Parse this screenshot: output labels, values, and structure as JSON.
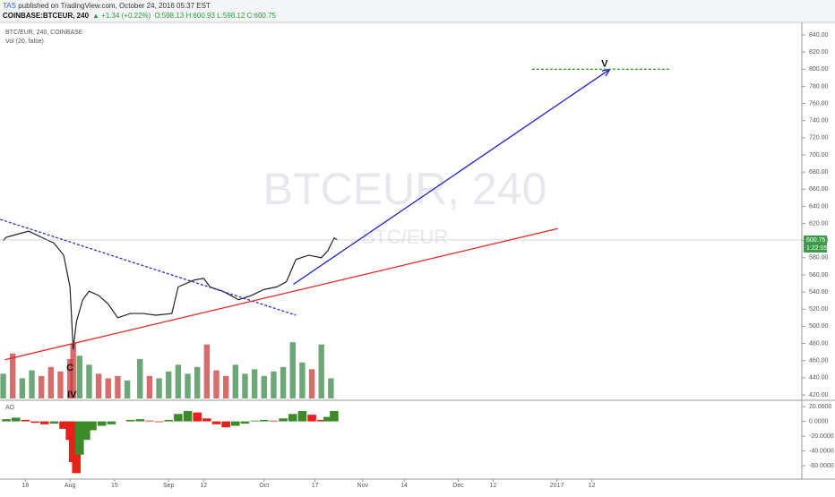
{
  "chart_data": {
    "type": "line",
    "header": {
      "author": "TAS",
      "published": " published on TradingView.com, October 24, 2016 05:37 EST",
      "symbol": "COINBASE:BTCEUR, 240",
      "change": "▲ +1.34 (+0.22%)",
      "ohlc": "O:598.13 H:600.93 L:598.12 C:600.75"
    },
    "legend": {
      "main": "BTC/EUR, 240, COINBASE",
      "volume": "Vol (20, false)",
      "oscillator": "AO"
    },
    "watermark": {
      "title": "BTCEUR, 240",
      "subtitle": "BTC/EUR"
    },
    "xlim": [
      -8,
      244
    ],
    "xticks": [
      {
        "value": 0,
        "label": "18"
      },
      {
        "value": 14,
        "label": "Aug"
      },
      {
        "value": 28,
        "label": "15"
      },
      {
        "value": 45,
        "label": "Sep"
      },
      {
        "value": 56,
        "label": "12"
      },
      {
        "value": 75,
        "label": "Oct"
      },
      {
        "value": 91,
        "label": "17"
      },
      {
        "value": 106,
        "label": "Nov"
      },
      {
        "value": 119,
        "label": "14"
      },
      {
        "value": 136,
        "label": "Dec"
      },
      {
        "value": 147,
        "label": "12"
      },
      {
        "value": 167,
        "label": "2017"
      },
      {
        "value": 178,
        "label": "12"
      }
    ],
    "ylim": [
      413.7,
      851.5
    ],
    "yticks": [
      {
        "value": 420,
        "label": "420.00"
      },
      {
        "value": 440,
        "label": "440.00"
      },
      {
        "value": 460,
        "label": "460.00"
      },
      {
        "value": 480,
        "label": "480.00"
      },
      {
        "value": 500,
        "label": "500.00"
      },
      {
        "value": 520,
        "label": "520.00"
      },
      {
        "value": 540,
        "label": "540.00"
      },
      {
        "value": 560,
        "label": "560.00"
      },
      {
        "value": 580,
        "label": "580.00"
      },
      {
        "value": 600,
        "label": "600.00"
      },
      {
        "value": 620,
        "label": "620.00"
      },
      {
        "value": 640,
        "label": "640.00"
      },
      {
        "value": 660,
        "label": "660.00"
      },
      {
        "value": 680,
        "label": "680.00"
      },
      {
        "value": 700,
        "label": "700.00"
      },
      {
        "value": 720,
        "label": "720.00"
      },
      {
        "value": 740,
        "label": "740.00"
      },
      {
        "value": 760,
        "label": "760.00"
      },
      {
        "value": 780,
        "label": "780.00"
      },
      {
        "value": 800,
        "label": "800.00"
      },
      {
        "value": 820,
        "label": "820.00"
      },
      {
        "value": 840,
        "label": "840.00"
      }
    ],
    "last_price": {
      "value": 600.75,
      "countdown": "1:22:05",
      "color": "#3c9a4a"
    },
    "price": {
      "color": "#222222",
      "x": [
        -7,
        -6,
        -3,
        1,
        5,
        9,
        12,
        14,
        15,
        16,
        18,
        20,
        23,
        26,
        29,
        33,
        37,
        41,
        46,
        48,
        53,
        56,
        58,
        62,
        67,
        71,
        75,
        79,
        82,
        85,
        89,
        93,
        95,
        97,
        98
      ],
      "values": [
        600,
        604,
        607,
        611,
        604,
        597,
        583,
        546,
        473,
        505,
        531,
        541,
        536,
        526,
        510,
        515,
        515,
        513,
        515,
        546,
        554,
        556,
        546,
        541,
        531,
        536,
        543,
        546,
        552,
        578,
        583,
        580,
        588,
        603,
        601
      ]
    },
    "volume": {
      "ylim": [
        0,
        100
      ],
      "x": [
        -7,
        -4,
        -1,
        2,
        5,
        8,
        11,
        14,
        15,
        17,
        20,
        23,
        26,
        29,
        32,
        36,
        39,
        42,
        45,
        48,
        51,
        54,
        57,
        60,
        63,
        66,
        69,
        72,
        75,
        78,
        81,
        84,
        87,
        90,
        93,
        96
      ],
      "values": [
        22,
        40,
        18,
        25,
        20,
        28,
        24,
        35,
        49,
        38,
        30,
        22,
        18,
        20,
        16,
        35,
        20,
        18,
        24,
        30,
        22,
        28,
        48,
        25,
        20,
        30,
        22,
        26,
        20,
        24,
        28,
        50,
        32,
        26,
        48,
        18
      ],
      "colors": [
        "#3c8a4a",
        "#c83c3c",
        "#3c8a4a",
        "#3c8a4a",
        "#c83c3c",
        "#c83c3c",
        "#c83c3c",
        "#c83c3c",
        "#c83c3c",
        "#3c8a4a",
        "#3c8a4a",
        "#c83c3c",
        "#c83c3c",
        "#c83c3c",
        "#3c8a4a",
        "#3c8a4a",
        "#c83c3c",
        "#3c8a4a",
        "#3c8a4a",
        "#3c8a4a",
        "#3c8a4a",
        "#3c8a4a",
        "#c83c3c",
        "#c83c3c",
        "#c83c3c",
        "#3c8a4a",
        "#3c8a4a",
        "#3c8a4a",
        "#3c8a4a",
        "#3c8a4a",
        "#3c8a4a",
        "#3c8a4a",
        "#3c8a4a",
        "#c83c3c",
        "#3c8a4a",
        "#3c8a4a"
      ]
    },
    "ao": {
      "ylim": [
        -78,
        27.3
      ],
      "yticks": [
        {
          "value": 20,
          "label": "20.0000"
        },
        {
          "value": 0,
          "label": "0.0000"
        },
        {
          "value": -20,
          "label": "-20.0000"
        },
        {
          "value": -40,
          "label": "-40.0000"
        },
        {
          "value": -60,
          "label": "-60.0000"
        }
      ],
      "up_color": "#3c8a2a",
      "down_color": "#e8201a",
      "x": [
        -6,
        -3,
        0,
        3,
        6,
        9,
        12,
        14,
        15,
        16,
        17,
        19,
        21,
        24,
        27,
        30,
        33,
        36,
        39,
        42,
        45,
        48,
        51,
        54,
        57,
        60,
        63,
        66,
        69,
        72,
        75,
        78,
        81,
        84,
        87,
        90,
        93,
        95,
        97
      ],
      "values": [
        3,
        5,
        2,
        -2,
        -4,
        -3,
        -10,
        -25,
        -55,
        -70,
        -45,
        -25,
        -12,
        -6,
        -4,
        0,
        2,
        3,
        1,
        -1,
        2,
        10,
        14,
        12,
        4,
        -4,
        -8,
        -6,
        -3,
        1,
        2,
        1,
        4,
        10,
        14,
        9,
        2,
        6,
        14
      ]
    },
    "drawings": [
      {
        "color": "#2a2ad0",
        "dashed": true,
        "arrow": false,
        "x": [
          -7.9,
          85
        ],
        "values": [
          624.8,
          513
        ]
      },
      {
        "color": "#e82020",
        "dashed": false,
        "arrow": false,
        "x": [
          -6.5,
          167.3
        ],
        "values": [
          461,
          614
        ]
      },
      {
        "color": "#2020c8",
        "dashed": false,
        "arrow": true,
        "x": [
          84.2,
          183.7
        ],
        "values": [
          549,
          800
        ]
      },
      {
        "color": "#3c9a2a",
        "dashed": true,
        "arrow": false,
        "x": [
          159.2,
          202.8
        ],
        "values": [
          800,
          800
        ]
      }
    ],
    "annotations": [
      {
        "text": "V",
        "x": 182,
        "y": 806
      },
      {
        "text": "C",
        "x": 14,
        "y": 451
      },
      {
        "text": "IV",
        "x": 14.6,
        "y": 420
      }
    ]
  }
}
